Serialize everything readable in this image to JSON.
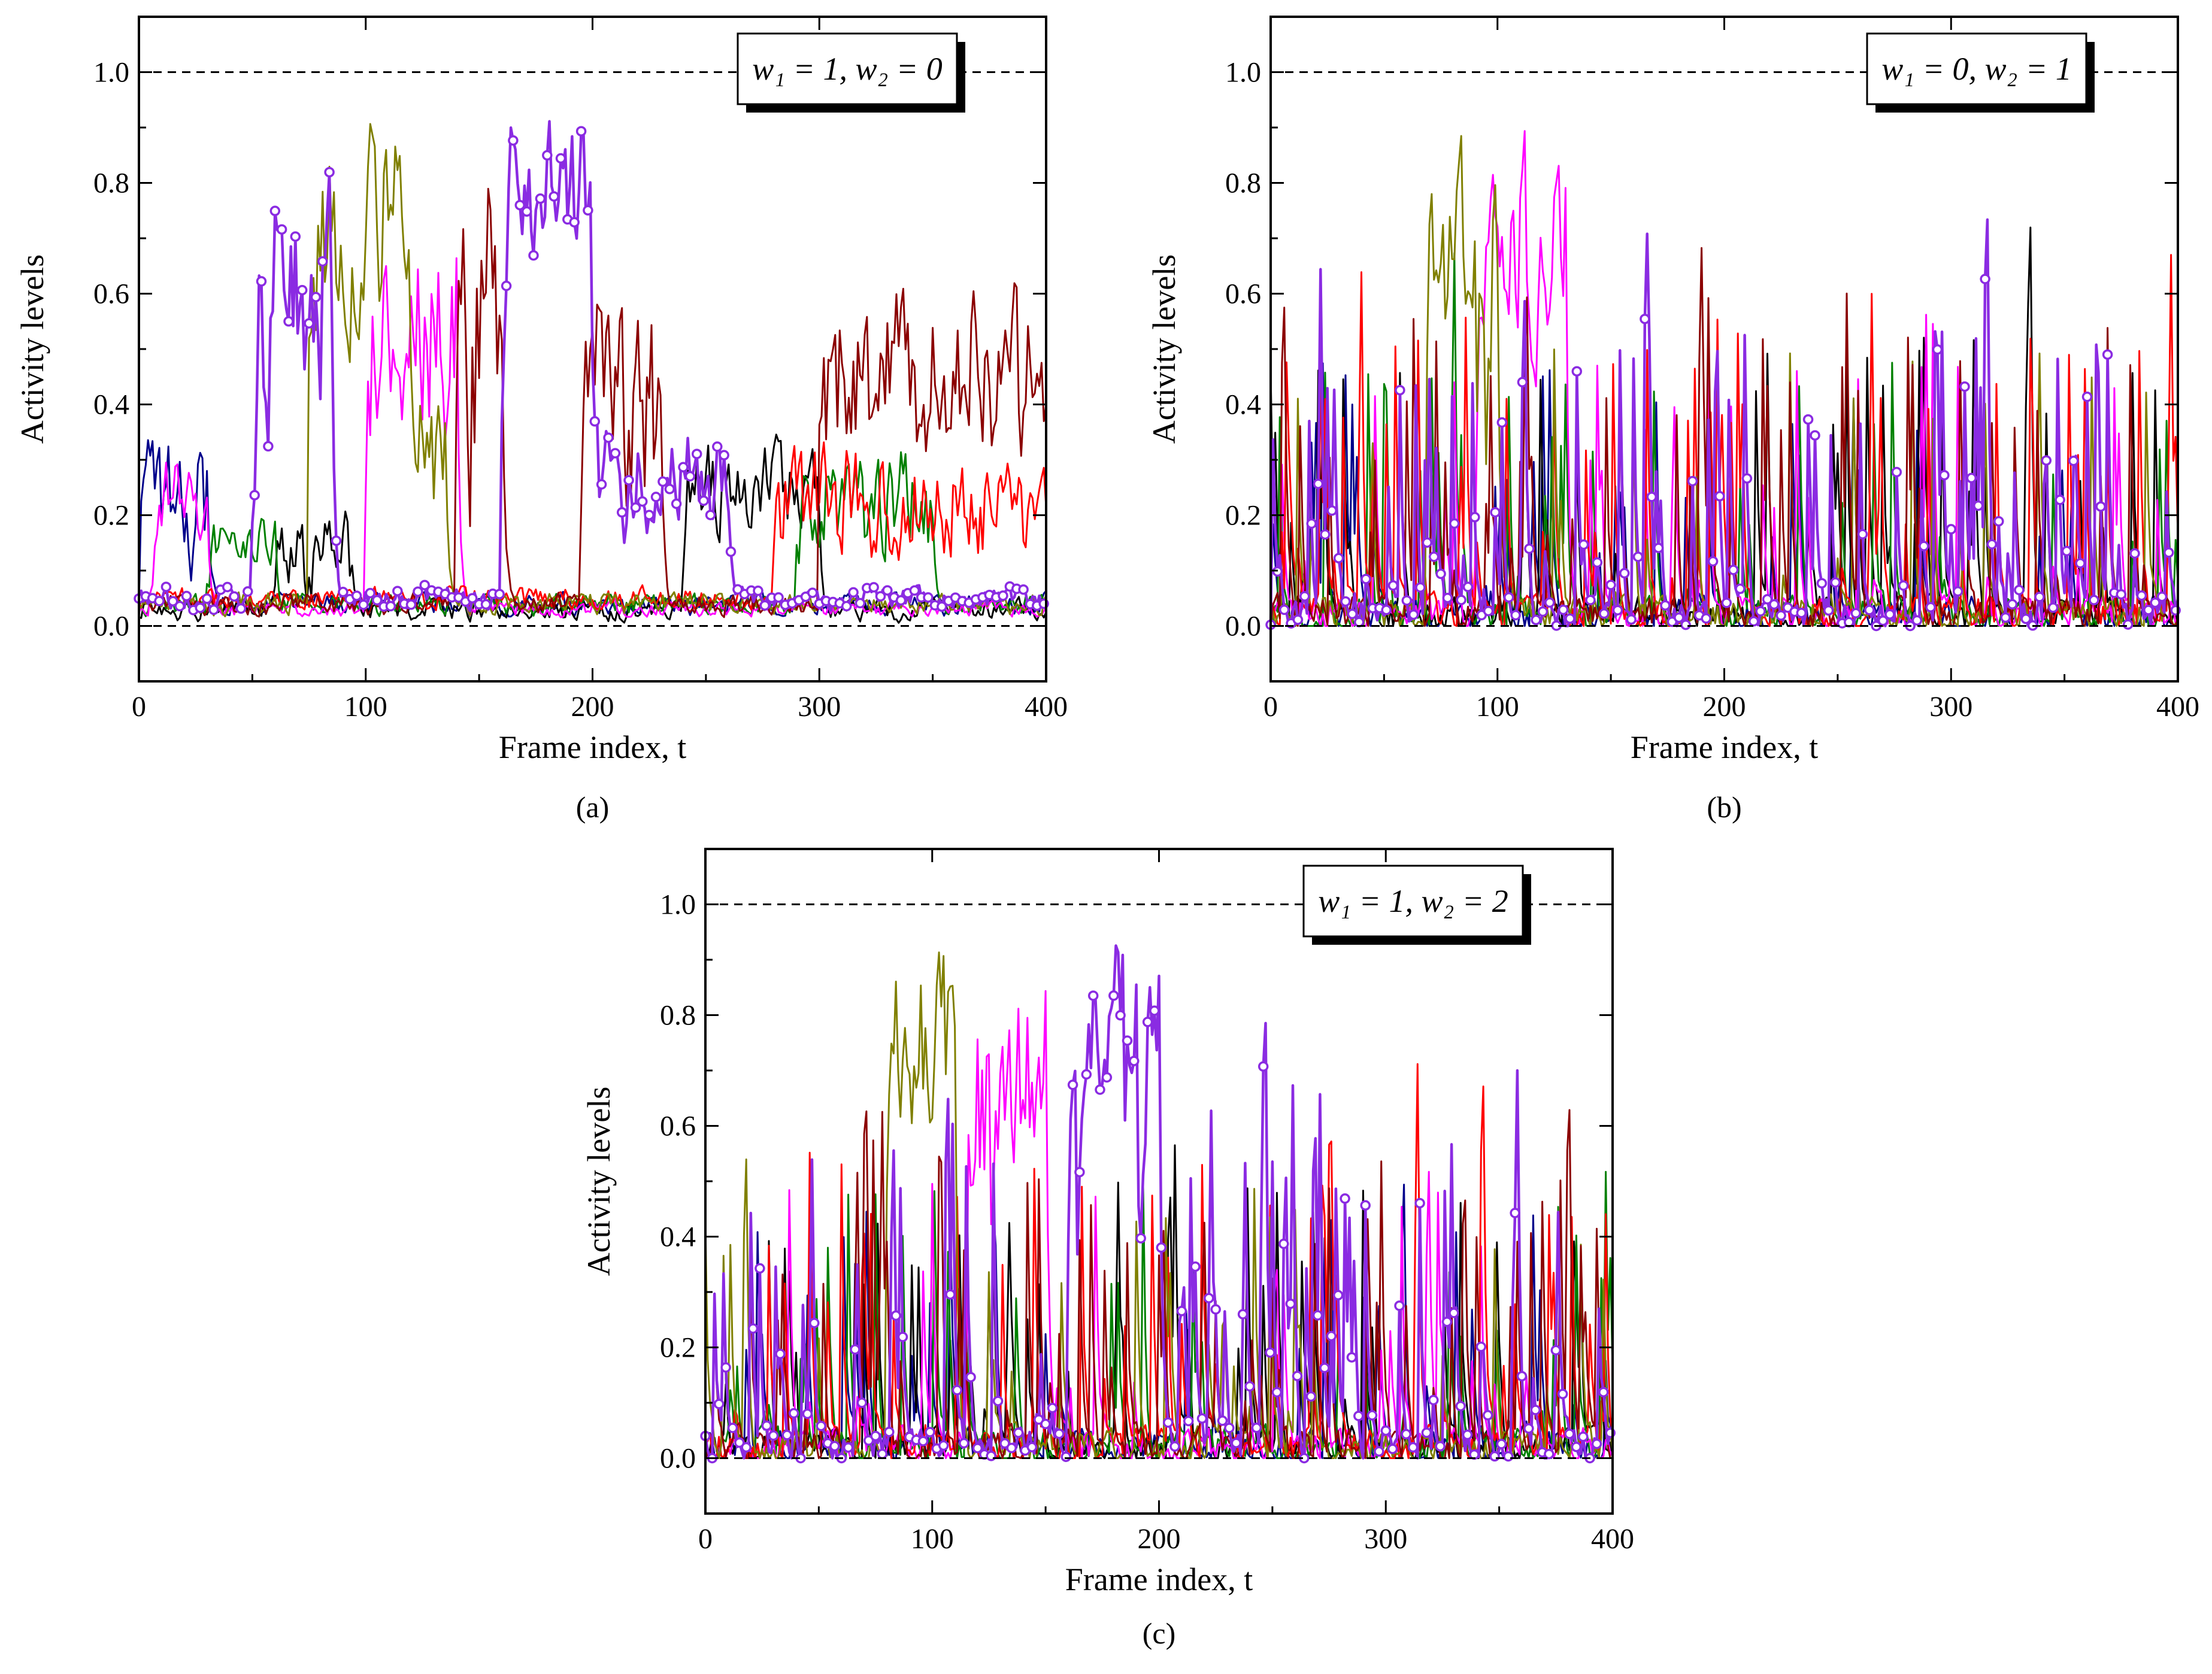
{
  "figure": {
    "series_colors": [
      "#00008B",
      "#000000",
      "#008000",
      "#FF00FF",
      "#FF0000",
      "#808000",
      "#8B0000",
      "#8A2BE2"
    ],
    "highlight_series_color": "#8A2BE2"
  },
  "chart_data": [
    {
      "type": "line",
      "panel": "a",
      "caption": "(a)",
      "legend": {
        "w1": "1",
        "w2": "0",
        "text": "w₁ = 1, w₂ = 0"
      },
      "xlabel": "Frame index, t",
      "ylabel": "Activity levels",
      "xlim": [
        0,
        400
      ],
      "ylim": [
        -0.1,
        1.1
      ],
      "x_ticks": [
        0,
        100,
        200,
        300,
        400
      ],
      "x_tick_labels": [
        "0",
        "100",
        "200",
        "300",
        "400"
      ],
      "y_ticks": [
        0.0,
        0.2,
        0.4,
        0.6,
        0.8,
        1.0
      ],
      "y_tick_labels": [
        "0.0",
        "0.2",
        "0.4",
        "0.6",
        "0.8",
        "1.0"
      ],
      "reference_lines": [
        0.0,
        1.0
      ],
      "series": [
        {
          "name": "navy",
          "color": "#00008B",
          "seed": 11,
          "base": 0.04,
          "noise": 0.03,
          "spike_prob": 0.0,
          "spike_max": 0.0,
          "segments": [
            [
              0,
              30,
              0.22,
              0.18
            ]
          ]
        },
        {
          "name": "black",
          "color": "#000000",
          "seed": 12,
          "base": 0.03,
          "noise": 0.03,
          "spike_prob": 0.0,
          "spike_max": 0.0,
          "segments": [
            [
              60,
              95,
              0.12,
              0.12
            ],
            [
              240,
              300,
              0.25,
              0.12
            ]
          ]
        },
        {
          "name": "green",
          "color": "#008000",
          "seed": 13,
          "base": 0.04,
          "noise": 0.03,
          "spike_prob": 0.0,
          "spike_max": 0.0,
          "segments": [
            [
              30,
              60,
              0.14,
              0.08
            ],
            [
              290,
              350,
              0.22,
              0.15
            ]
          ]
        },
        {
          "name": "magenta",
          "color": "#FF00FF",
          "seed": 14,
          "base": 0.03,
          "noise": 0.02,
          "spike_prob": 0.0,
          "spike_max": 0.0,
          "segments": [
            [
              5,
              30,
              0.22,
              0.14
            ],
            [
              100,
              140,
              0.55,
              0.3
            ]
          ]
        },
        {
          "name": "red",
          "color": "#FF0000",
          "seed": 15,
          "base": 0.05,
          "noise": 0.03,
          "spike_prob": 0.0,
          "spike_max": 0.0,
          "segments": [
            [
              280,
              400,
              0.22,
              0.15
            ]
          ]
        },
        {
          "name": "olive",
          "color": "#808000",
          "seed": 16,
          "base": 0.04,
          "noise": 0.03,
          "spike_prob": 0.0,
          "spike_max": 0.0,
          "segments": [
            [
              75,
              120,
              0.72,
              0.28
            ],
            [
              120,
              135,
              0.3,
              0.2
            ]
          ]
        },
        {
          "name": "darkred",
          "color": "#8B0000",
          "seed": 17,
          "base": 0.04,
          "noise": 0.03,
          "spike_prob": 0.0,
          "spike_max": 0.0,
          "segments": [
            [
              140,
              160,
              0.5,
              0.45
            ],
            [
              195,
              230,
              0.4,
              0.3
            ],
            [
              300,
              400,
              0.45,
              0.25
            ]
          ]
        },
        {
          "name": "violet",
          "color": "#8A2BE2",
          "seed": 18,
          "base": 0.05,
          "noise": 0.03,
          "spike_prob": 0.0,
          "spike_max": 0.0,
          "markers": true,
          "marker_step": 3,
          "segments": [
            [
              50,
              85,
              0.55,
              0.35
            ],
            [
              160,
              200,
              0.8,
              0.2
            ],
            [
              200,
              260,
              0.25,
              0.15
            ]
          ]
        }
      ]
    },
    {
      "type": "line",
      "panel": "b",
      "caption": "(b)",
      "legend": {
        "w1": "0",
        "w2": "1",
        "text": "w₁ = 0, w₂ = 1"
      },
      "xlabel": "Frame index, t",
      "ylabel": "Activity levels",
      "xlim": [
        0,
        400
      ],
      "ylim": [
        -0.1,
        1.1
      ],
      "x_ticks": [
        0,
        100,
        200,
        300,
        400
      ],
      "x_tick_labels": [
        "0",
        "100",
        "200",
        "300",
        "400"
      ],
      "y_ticks": [
        0.0,
        0.2,
        0.4,
        0.6,
        0.8,
        1.0
      ],
      "y_tick_labels": [
        "0.0",
        "0.2",
        "0.4",
        "0.6",
        "0.8",
        "1.0"
      ],
      "reference_lines": [
        0.0,
        1.0
      ],
      "series": [
        {
          "name": "navy",
          "color": "#00008B",
          "seed": 21,
          "base": 0.02,
          "noise": 0.05,
          "spike_prob": 0.12,
          "spike_max": 0.8,
          "segments": []
        },
        {
          "name": "black",
          "color": "#000000",
          "seed": 22,
          "base": 0.02,
          "noise": 0.05,
          "spike_prob": 0.12,
          "spike_max": 0.85,
          "segments": []
        },
        {
          "name": "green",
          "color": "#008000",
          "seed": 23,
          "base": 0.02,
          "noise": 0.05,
          "spike_prob": 0.1,
          "spike_max": 0.9,
          "segments": []
        },
        {
          "name": "magenta",
          "color": "#FF00FF",
          "seed": 24,
          "base": 0.02,
          "noise": 0.05,
          "spike_prob": 0.1,
          "spike_max": 0.9,
          "segments": [
            [
              90,
              130,
              0.7,
              0.3
            ]
          ]
        },
        {
          "name": "red",
          "color": "#FF0000",
          "seed": 25,
          "base": 0.02,
          "noise": 0.05,
          "spike_prob": 0.14,
          "spike_max": 0.95,
          "segments": []
        },
        {
          "name": "olive",
          "color": "#808000",
          "seed": 26,
          "base": 0.02,
          "noise": 0.05,
          "spike_prob": 0.1,
          "spike_max": 0.9,
          "segments": [
            [
              70,
              100,
              0.7,
              0.3
            ]
          ]
        },
        {
          "name": "darkred",
          "color": "#8B0000",
          "seed": 27,
          "base": 0.02,
          "noise": 0.05,
          "spike_prob": 0.16,
          "spike_max": 1.0,
          "segments": []
        },
        {
          "name": "violet",
          "color": "#8A2BE2",
          "seed": 28,
          "base": 0.02,
          "noise": 0.05,
          "spike_prob": 0.22,
          "spike_max": 1.0,
          "markers": true,
          "marker_step": 3,
          "segments": []
        }
      ]
    },
    {
      "type": "line",
      "panel": "c",
      "caption": "(c)",
      "legend": {
        "w1": "1",
        "w2": "2",
        "text": "w₁ = 1, w₂ = 2"
      },
      "xlabel": "Frame index, t",
      "ylabel": "Activity levels",
      "xlim": [
        0,
        400
      ],
      "ylim": [
        -0.1,
        1.1
      ],
      "x_ticks": [
        0,
        100,
        200,
        300,
        400
      ],
      "x_tick_labels": [
        "0",
        "100",
        "200",
        "300",
        "400"
      ],
      "y_ticks": [
        0.0,
        0.2,
        0.4,
        0.6,
        0.8,
        1.0
      ],
      "y_tick_labels": [
        "0.0",
        "0.2",
        "0.4",
        "0.6",
        "0.8",
        "1.0"
      ],
      "reference_lines": [
        0.0,
        1.0
      ],
      "series": [
        {
          "name": "navy",
          "color": "#00008B",
          "seed": 31,
          "base": 0.02,
          "noise": 0.05,
          "spike_prob": 0.08,
          "spike_max": 0.8,
          "segments": []
        },
        {
          "name": "black",
          "color": "#000000",
          "seed": 32,
          "base": 0.02,
          "noise": 0.05,
          "spike_prob": 0.1,
          "spike_max": 0.85,
          "segments": []
        },
        {
          "name": "green",
          "color": "#008000",
          "seed": 33,
          "base": 0.02,
          "noise": 0.05,
          "spike_prob": 0.08,
          "spike_max": 0.9,
          "segments": []
        },
        {
          "name": "magenta",
          "color": "#FF00FF",
          "seed": 34,
          "base": 0.02,
          "noise": 0.05,
          "spike_prob": 0.08,
          "spike_max": 0.9,
          "segments": [
            [
              115,
              150,
              0.7,
              0.3
            ]
          ]
        },
        {
          "name": "red",
          "color": "#FF0000",
          "seed": 35,
          "base": 0.02,
          "noise": 0.05,
          "spike_prob": 0.14,
          "spike_max": 1.0,
          "segments": []
        },
        {
          "name": "olive",
          "color": "#808000",
          "seed": 36,
          "base": 0.02,
          "noise": 0.05,
          "spike_prob": 0.1,
          "spike_max": 0.9,
          "segments": [
            [
              80,
              110,
              0.75,
              0.25
            ]
          ]
        },
        {
          "name": "darkred",
          "color": "#8B0000",
          "seed": 37,
          "base": 0.02,
          "noise": 0.05,
          "spike_prob": 0.16,
          "spike_max": 1.0,
          "segments": []
        },
        {
          "name": "violet",
          "color": "#8A2BE2",
          "seed": 38,
          "base": 0.02,
          "noise": 0.05,
          "spike_prob": 0.2,
          "spike_max": 1.0,
          "markers": true,
          "marker_step": 3,
          "segments": [
            [
              160,
              200,
              0.8,
              0.2
            ]
          ]
        }
      ]
    }
  ]
}
